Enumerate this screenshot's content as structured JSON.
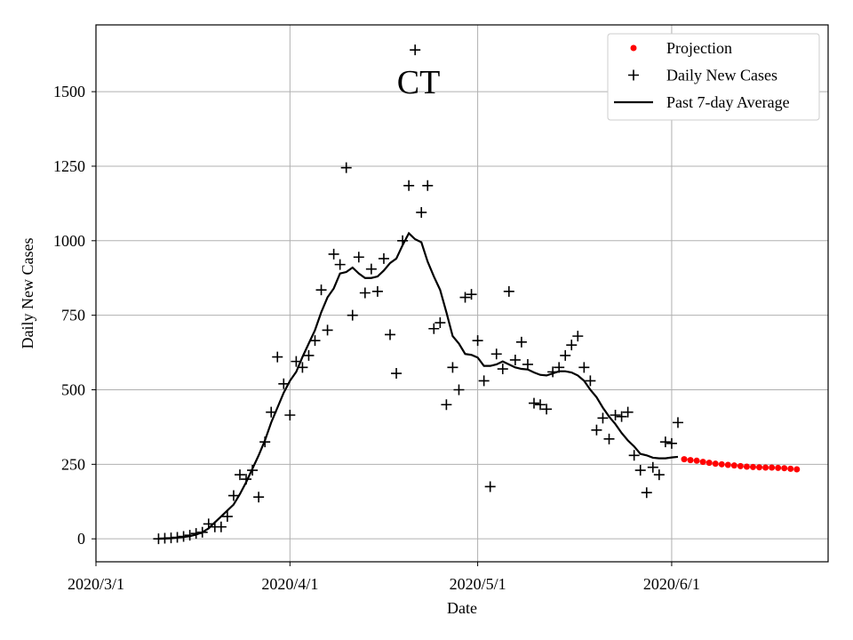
{
  "chart_data": {
    "type": "line",
    "title": "CT",
    "x_label": "Date",
    "y_label": "Daily New Cases",
    "xlim": [
      "2020/3/1",
      "2020/6/26"
    ],
    "xticks": [
      "2020/3/1",
      "2020/4/1",
      "2020/5/1",
      "2020/6/1"
    ],
    "ylim": [
      -77,
      1724
    ],
    "yticks": [
      0,
      250,
      500,
      750,
      1000,
      1250,
      1500
    ],
    "grid": true,
    "legend": "upper right",
    "series": [
      {
        "name": "Projection",
        "color": "#ff0000",
        "marker": "dot",
        "x": [
          "2020/6/3",
          "2020/6/4",
          "2020/6/5",
          "2020/6/6",
          "2020/6/7",
          "2020/6/8",
          "2020/6/9",
          "2020/6/10",
          "2020/6/11",
          "2020/6/12",
          "2020/6/13",
          "2020/6/14",
          "2020/6/15",
          "2020/6/16",
          "2020/6/17",
          "2020/6/18",
          "2020/6/19",
          "2020/6/20",
          "2020/6/21"
        ],
        "values": [
          267,
          264,
          262,
          258,
          255,
          252,
          250,
          248,
          246,
          244,
          242,
          241,
          240,
          239,
          239,
          238,
          237,
          235,
          233
        ]
      },
      {
        "name": "Daily New Cases",
        "color": "#000000",
        "marker": "plus",
        "x": [
          "2020/3/11",
          "2020/3/12",
          "2020/3/13",
          "2020/3/14",
          "2020/3/15",
          "2020/3/16",
          "2020/3/17",
          "2020/3/18",
          "2020/3/19",
          "2020/3/20",
          "2020/3/21",
          "2020/3/22",
          "2020/3/23",
          "2020/3/24",
          "2020/3/25",
          "2020/3/26",
          "2020/3/27",
          "2020/3/28",
          "2020/3/29",
          "2020/3/30",
          "2020/3/31",
          "2020/4/1",
          "2020/4/2",
          "2020/4/3",
          "2020/4/4",
          "2020/4/5",
          "2020/4/6",
          "2020/4/7",
          "2020/4/8",
          "2020/4/9",
          "2020/4/10",
          "2020/4/11",
          "2020/4/12",
          "2020/4/13",
          "2020/4/14",
          "2020/4/15",
          "2020/4/16",
          "2020/4/17",
          "2020/4/18",
          "2020/4/19",
          "2020/4/20",
          "2020/4/21",
          "2020/4/22",
          "2020/4/23",
          "2020/4/24",
          "2020/4/25",
          "2020/4/26",
          "2020/4/27",
          "2020/4/28",
          "2020/4/29",
          "2020/4/30",
          "2020/5/1",
          "2020/5/2",
          "2020/5/3",
          "2020/5/4",
          "2020/5/5",
          "2020/5/6",
          "2020/5/7",
          "2020/5/8",
          "2020/5/9",
          "2020/5/10",
          "2020/5/11",
          "2020/5/12",
          "2020/5/13",
          "2020/5/14",
          "2020/5/15",
          "2020/5/16",
          "2020/5/17",
          "2020/5/18",
          "2020/5/19",
          "2020/5/20",
          "2020/5/21",
          "2020/5/22",
          "2020/5/23",
          "2020/5/24",
          "2020/5/25",
          "2020/5/26",
          "2020/5/27",
          "2020/5/28",
          "2020/5/29",
          "2020/5/30",
          "2020/5/31",
          "2020/6/1",
          "2020/6/2"
        ],
        "values": [
          0,
          2,
          3,
          5,
          8,
          12,
          18,
          22,
          50,
          40,
          40,
          75,
          145,
          215,
          200,
          230,
          140,
          325,
          425,
          610,
          520,
          415,
          595,
          575,
          615,
          665,
          835,
          700,
          955,
          920,
          1245,
          750,
          945,
          825,
          905,
          830,
          940,
          685,
          555,
          1000,
          1185,
          1640,
          1095,
          1185,
          705,
          725,
          450,
          575,
          500,
          810,
          820,
          665,
          530,
          175,
          620,
          570,
          830,
          600,
          660,
          585,
          455,
          450,
          435,
          560,
          575,
          615,
          650,
          680,
          575,
          530,
          365,
          405,
          335,
          415,
          410,
          425,
          280,
          230,
          155,
          240,
          215,
          325,
          320,
          390
        ]
      },
      {
        "name": "Past 7-day Average",
        "color": "#000000",
        "marker": "line",
        "x": [
          "2020/3/11",
          "2020/3/12",
          "2020/3/13",
          "2020/3/14",
          "2020/3/15",
          "2020/3/16",
          "2020/3/17",
          "2020/3/18",
          "2020/3/19",
          "2020/3/20",
          "2020/3/21",
          "2020/3/22",
          "2020/3/23",
          "2020/3/24",
          "2020/3/25",
          "2020/3/26",
          "2020/3/27",
          "2020/3/28",
          "2020/3/29",
          "2020/3/30",
          "2020/3/31",
          "2020/4/1",
          "2020/4/2",
          "2020/4/3",
          "2020/4/4",
          "2020/4/5",
          "2020/4/6",
          "2020/4/7",
          "2020/4/8",
          "2020/4/9",
          "2020/4/10",
          "2020/4/11",
          "2020/4/12",
          "2020/4/13",
          "2020/4/14",
          "2020/4/15",
          "2020/4/16",
          "2020/4/17",
          "2020/4/18",
          "2020/4/19",
          "2020/4/20",
          "2020/4/21",
          "2020/4/22",
          "2020/4/23",
          "2020/4/24",
          "2020/4/25",
          "2020/4/26",
          "2020/4/27",
          "2020/4/28",
          "2020/4/29",
          "2020/4/30",
          "2020/5/1",
          "2020/5/2",
          "2020/5/3",
          "2020/5/4",
          "2020/5/5",
          "2020/5/6",
          "2020/5/7",
          "2020/5/8",
          "2020/5/9",
          "2020/5/10",
          "2020/5/11",
          "2020/5/12",
          "2020/5/13",
          "2020/5/14",
          "2020/5/15",
          "2020/5/16",
          "2020/5/17",
          "2020/5/18",
          "2020/5/19",
          "2020/5/20",
          "2020/5/21",
          "2020/5/22",
          "2020/5/23",
          "2020/5/24",
          "2020/5/25",
          "2020/5/26",
          "2020/5/27",
          "2020/5/28",
          "2020/5/29",
          "2020/5/30",
          "2020/5/31",
          "2020/6/1",
          "2020/6/2"
        ],
        "values": [
          0,
          1,
          2,
          4,
          6,
          9,
          14,
          22,
          35,
          55,
          75,
          95,
          115,
          150,
          190,
          235,
          280,
          330,
          390,
          440,
          490,
          530,
          560,
          610,
          655,
          700,
          760,
          810,
          840,
          890,
          895,
          910,
          890,
          875,
          875,
          880,
          900,
          925,
          940,
          985,
          1025,
          1005,
          995,
          930,
          880,
          835,
          760,
          680,
          655,
          620,
          617,
          608,
          580,
          580,
          585,
          595,
          585,
          575,
          570,
          568,
          558,
          550,
          548,
          555,
          562,
          562,
          558,
          548,
          530,
          500,
          475,
          440,
          410,
          385,
          355,
          330,
          310,
          285,
          280,
          272,
          270,
          270,
          273,
          275
        ]
      }
    ]
  }
}
